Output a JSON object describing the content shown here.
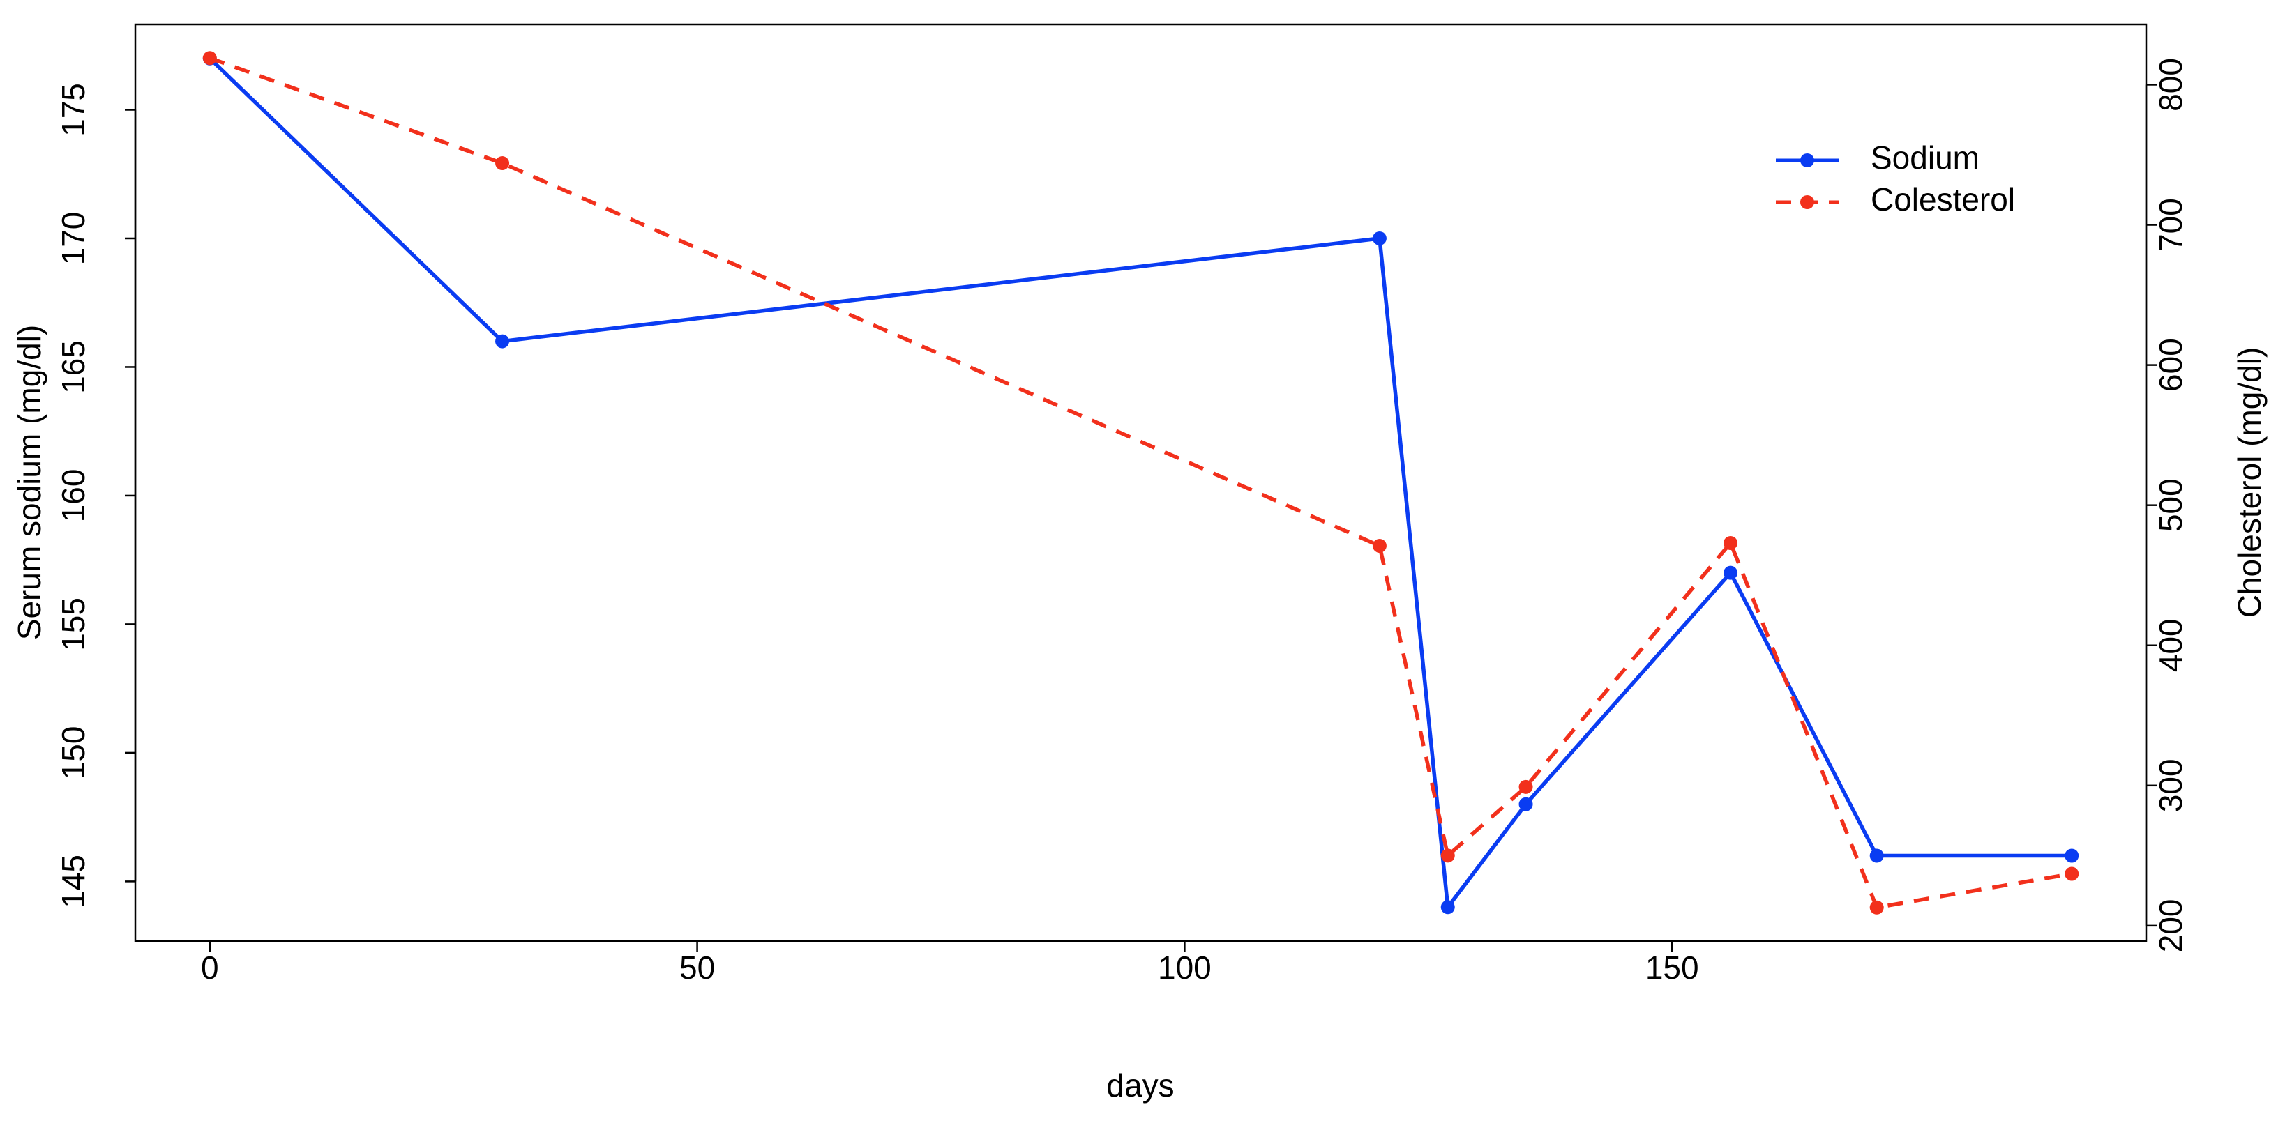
{
  "chart_data": {
    "type": "line",
    "x": [
      0,
      30,
      120,
      127,
      135,
      156,
      171,
      191
    ],
    "series": [
      {
        "name": "Sodium",
        "color": "#0a3cf2",
        "values": [
          177,
          166,
          170,
          144,
          148,
          157,
          146,
          146
        ]
      },
      {
        "name": "Colesterol",
        "color": "#f2301c",
        "axis": "y2",
        "dashed": true,
        "values": [
          819,
          744,
          471,
          250,
          299,
          473,
          213,
          237
        ]
      }
    ],
    "xlabel": "days",
    "ylabel": "Serum sodium (mg/dl)",
    "y2label": "Cholesterol (mg/dl)",
    "xlim": [
      -7.64,
      198.64
    ],
    "xticks": [
      0,
      50,
      100,
      150
    ],
    "ylim": [
      142.68,
      178.32
    ],
    "yticks": [
      145,
      150,
      155,
      160,
      165,
      170,
      175
    ],
    "y2lim": [
      189,
      843
    ],
    "y2ticks": [
      200,
      300,
      400,
      500,
      600,
      700,
      800
    ],
    "legend": "top-right"
  }
}
